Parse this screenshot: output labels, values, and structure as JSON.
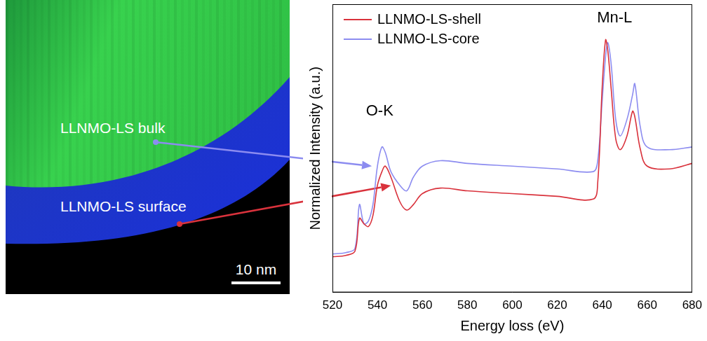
{
  "chart_data": {
    "type": "line",
    "x_label": "Energy loss (eV)",
    "y_label": "Normalized Intensity (a.u.)",
    "xlim": [
      520,
      680
    ],
    "xticks": [
      520,
      540,
      560,
      580,
      600,
      620,
      640,
      660,
      680
    ],
    "ylim": [
      0,
      1.05
    ],
    "tick_labels": "x",
    "grid": false,
    "legend": "upper left",
    "x": [
      520,
      526,
      530,
      532,
      534,
      536,
      538,
      540,
      542,
      543.5,
      546,
      550,
      553,
      556,
      560,
      568,
      580,
      600,
      620,
      636,
      638,
      640,
      641.5,
      642.5,
      644,
      646,
      648,
      651,
      653.5,
      654.5,
      657,
      660,
      670,
      680
    ],
    "series": [
      {
        "name": "LLNMO-LS-shell",
        "color": "#d9323c",
        "values": [
          0.13,
          0.135,
          0.15,
          0.27,
          0.25,
          0.24,
          0.28,
          0.39,
          0.44,
          0.46,
          0.42,
          0.33,
          0.3,
          0.32,
          0.36,
          0.38,
          0.37,
          0.36,
          0.35,
          0.34,
          0.4,
          0.75,
          0.92,
          0.88,
          0.74,
          0.56,
          0.52,
          0.57,
          0.66,
          0.64,
          0.52,
          0.46,
          0.45,
          0.47
        ]
      },
      {
        "name": "LLNMO-LS-core",
        "color": "#8c8cf0",
        "values": [
          0.14,
          0.145,
          0.16,
          0.32,
          0.25,
          0.26,
          0.32,
          0.46,
          0.53,
          0.51,
          0.44,
          0.39,
          0.37,
          0.42,
          0.46,
          0.48,
          0.47,
          0.46,
          0.45,
          0.44,
          0.48,
          0.7,
          0.86,
          0.91,
          0.83,
          0.63,
          0.57,
          0.63,
          0.72,
          0.76,
          0.6,
          0.53,
          0.52,
          0.53
        ]
      }
    ],
    "annotations": [
      {
        "text": "O-K",
        "x": 541,
        "y": 0.66
      },
      {
        "text": "Mn-L",
        "x": 645.5,
        "y": 1.0
      }
    ]
  },
  "image": {
    "labels": [
      "LLNMO-LS bulk",
      "LLNMO-LS surface"
    ],
    "scale_bar": "10 nm"
  }
}
